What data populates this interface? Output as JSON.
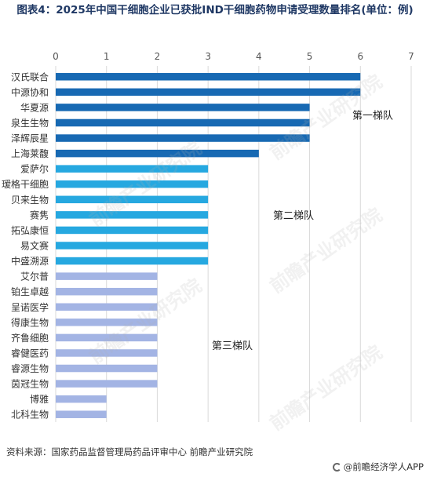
{
  "title": "图表4：2025年中国干细胞企业已获批IND干细胞药物申请受理数量排名(单位：例)",
  "source": "资料来源：国家药品监督管理局药品评审中心 前瞻产业研究院",
  "brand": "@前瞻经济学人APP",
  "watermark": "前瞻产业研究院",
  "chart_data": {
    "type": "bar",
    "orientation": "horizontal",
    "categories": [
      "汉氏联合",
      "中源协和",
      "华夏源",
      "泉生生物",
      "泽辉辰星",
      "上海莱馥",
      "爱萨尔",
      "瑷格干细胞",
      "贝来生物",
      "赛隽",
      "拓弘康恒",
      "易文赛",
      "中盛溯源",
      "艾尔普",
      "铂生卓越",
      "呈诺医学",
      "得康生物",
      "齐鲁细胞",
      "睿健医药",
      "睿源生物",
      "茵冠生物",
      "博雅",
      "北科生物"
    ],
    "values": [
      6,
      6,
      5,
      5,
      5,
      4,
      3,
      3,
      3,
      3,
      3,
      3,
      3,
      2,
      2,
      2,
      2,
      2,
      2,
      2,
      2,
      1,
      1
    ],
    "tiers": [
      1,
      1,
      1,
      1,
      1,
      1,
      2,
      2,
      2,
      2,
      2,
      2,
      2,
      3,
      3,
      3,
      3,
      3,
      3,
      3,
      3,
      3,
      3
    ],
    "xlim": [
      0,
      7
    ],
    "xticks": [
      0,
      1,
      2,
      3,
      4,
      5,
      6,
      7
    ],
    "grid": true,
    "tier_colors": {
      "1": "#1769b3",
      "2": "#26a8e0",
      "3": "#a3b4e4"
    },
    "annotations": [
      "第一梯队",
      "第二梯队",
      "第三梯队"
    ]
  }
}
